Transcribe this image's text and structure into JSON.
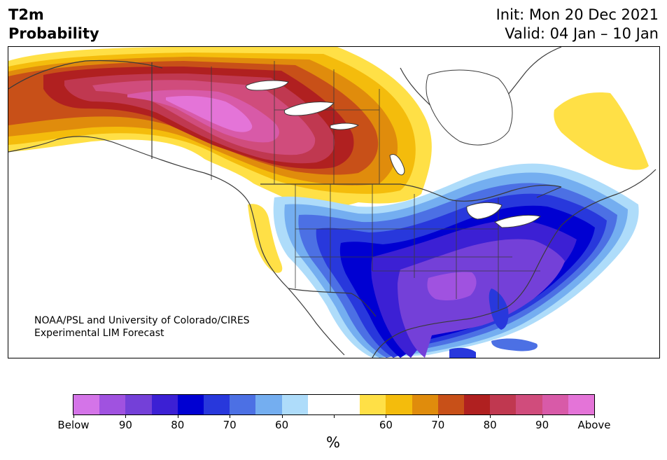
{
  "header": {
    "title_line1": "T2m",
    "title_line2": "Probability",
    "init_text": "Init: Mon 20 Dec 2021",
    "valid_text": "Valid: 04 Jan – 10 Jan"
  },
  "credit": {
    "line1": "NOAA/PSL and University of Colorado/CIRES",
    "line2": "Experimental LIM Forecast"
  },
  "colorbar": {
    "colors": [
      "#d474e8",
      "#a052e0",
      "#7440d8",
      "#3c20d4",
      "#0000d2",
      "#2838dc",
      "#4c70e4",
      "#74aef0",
      "#aedcfa",
      "#ffffff",
      "#ffffff",
      "#ffe046",
      "#f4bc0c",
      "#e08c0c",
      "#c85018",
      "#b02020",
      "#c03850",
      "#d04c7c",
      "#d85aa8",
      "#e474d8"
    ],
    "tick_labels": [
      "Below",
      "90",
      "80",
      "70",
      "60",
      "",
      "60",
      "70",
      "80",
      "90",
      "Above"
    ],
    "unit": "%"
  },
  "map": {
    "land_color": "#ffffff",
    "water_color": "#ffffff",
    "border_color": "#3a3a3a"
  }
}
